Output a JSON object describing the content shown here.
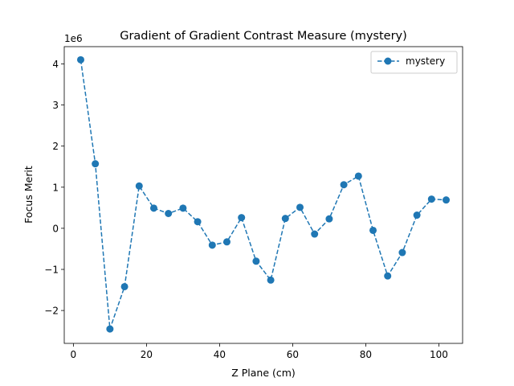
{
  "chart_data": {
    "type": "line",
    "title": "Gradient of Gradient Contrast Measure (mystery)",
    "xlabel": "Z Plane (cm)",
    "ylabel": "Focus Merit",
    "y_scale_label": "1e6",
    "y_multiplier": 1000000,
    "xlim": [
      -2.5,
      106.5
    ],
    "ylim": [
      -2.8,
      4.42
    ],
    "x_ticks": [
      0,
      20,
      40,
      60,
      80,
      100
    ],
    "y_ticks": [
      -2,
      -1,
      0,
      1,
      2,
      3,
      4
    ],
    "x_tick_labels": [
      "0",
      "20",
      "40",
      "60",
      "80",
      "100"
    ],
    "y_tick_labels": [
      "−2",
      "−1",
      "0",
      "1",
      "2",
      "3",
      "4"
    ],
    "grid": false,
    "legend_position": "top-right",
    "series": [
      {
        "name": "mystery",
        "color": "#1f77b4",
        "line_style": "dashed",
        "marker": "circle",
        "x": [
          2,
          6,
          10,
          14,
          18,
          22,
          26,
          30,
          34,
          38,
          42,
          46,
          50,
          54,
          58,
          62,
          66,
          70,
          74,
          78,
          82,
          86,
          90,
          94,
          98,
          102
        ],
        "y": [
          4.1,
          1.57,
          -2.45,
          -1.42,
          1.03,
          0.49,
          0.36,
          0.49,
          0.16,
          -0.41,
          -0.33,
          0.26,
          -0.8,
          -1.26,
          0.24,
          0.51,
          -0.14,
          0.23,
          1.06,
          1.27,
          -0.05,
          -1.16,
          -0.59,
          0.32,
          0.71,
          0.69
        ]
      }
    ]
  }
}
